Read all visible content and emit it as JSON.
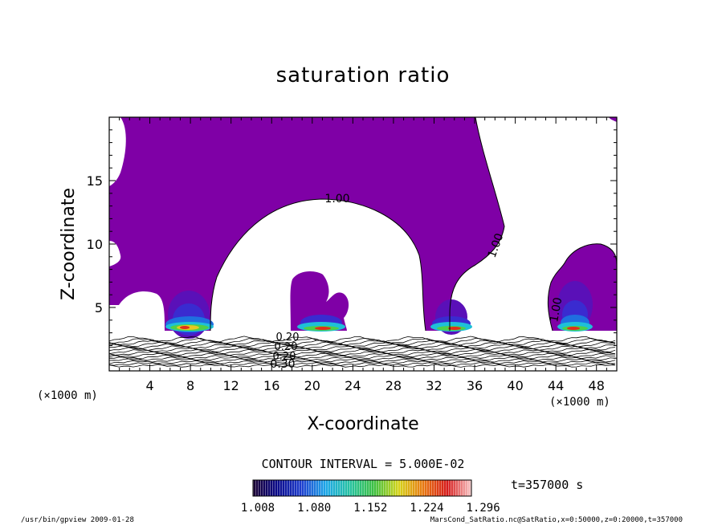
{
  "chart_data": {
    "type": "heatmap",
    "title": "saturation ratio",
    "xlabel": "X-coordinate",
    "ylabel": "Z-coordinate",
    "x_unit": "(×1000 m)",
    "y_unit": "(×1000 m)",
    "xlim": [
      0,
      50
    ],
    "ylim": [
      0,
      20
    ],
    "x_ticks": [
      "4",
      "8",
      "12",
      "16",
      "20",
      "24",
      "28",
      "32",
      "36",
      "40",
      "44",
      "48"
    ],
    "y_ticks": [
      "5",
      "10",
      "15"
    ],
    "contour_labels": [
      "1.00",
      "1.00",
      "1.00",
      "0.30",
      "0.20",
      "0.20",
      "0.20"
    ],
    "contour_interval": "CONTOUR INTERVAL = 5.000E-02",
    "colorbar_ticks": [
      "1.008",
      "1.080",
      "1.152",
      "1.224",
      "1.296"
    ],
    "time_label": "t=357000 s",
    "footer_left": "/usr/bin/gpview  2009-01-28",
    "footer_right": "MarsCond_SatRatio.nc@SatRatio,x=0:50000,z=0:20000,t=357000",
    "colors": {
      "saturated": "#7f00a6",
      "colorbar": [
        "#1a0030",
        "#0a0a8a",
        "#1f3fcf",
        "#1ea8e8",
        "#27c2a0",
        "#3ec040",
        "#d6d41a",
        "#e87a12",
        "#d61a1a",
        "#f7c6c6"
      ]
    }
  }
}
